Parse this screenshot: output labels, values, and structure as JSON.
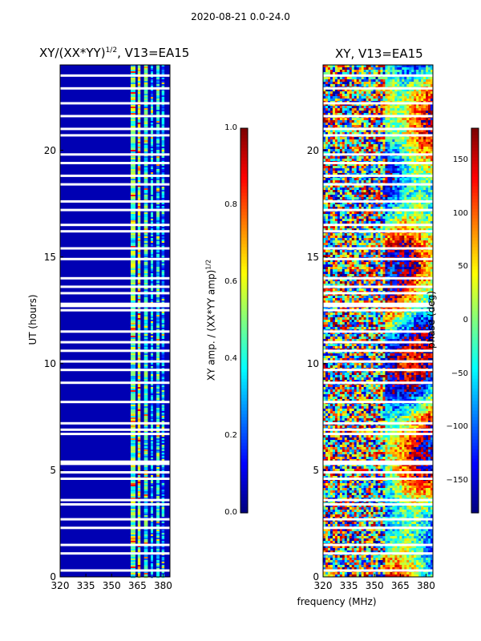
{
  "figure_title": "2020-08-21 0.0-24.0",
  "x_common_label": "frequency (MHz)",
  "chart_data": [
    {
      "type": "heatmap",
      "title": "XY/(XX*YY)",
      "title_exponent": "1/2",
      "title_suffix": ", V13=EA15",
      "xlabel": "frequency (MHz)",
      "ylabel": "UT (hours)",
      "xlim": [
        320,
        384
      ],
      "ylim": [
        0,
        24
      ],
      "xticks": [
        320,
        335,
        350,
        365,
        380
      ],
      "yticks": [
        0,
        5,
        10,
        15,
        20
      ],
      "colormap": "jet",
      "colorbar": {
        "label": "XY amp. / (XX*YY amp)",
        "label_exponent": "1/2",
        "range": [
          0.0,
          1.0
        ],
        "ticks": [
          "0.0",
          "0.2",
          "0.4",
          "0.6",
          "0.8",
          "1.0"
        ]
      },
      "signal_channels_mhz": [
        {
          "center": 362.5,
          "width": 2.8,
          "level": 0.45
        },
        {
          "center": 366.0,
          "width": 1.6,
          "level": 0.55
        },
        {
          "center": 370.0,
          "width": 2.2,
          "level": 0.4
        },
        {
          "center": 373.5,
          "width": 1.4,
          "level": 0.3
        },
        {
          "center": 377.0,
          "width": 1.8,
          "level": 0.35
        },
        {
          "center": 380.0,
          "width": 1.6,
          "level": 0.28
        }
      ],
      "background_level": 0.05
    },
    {
      "type": "heatmap",
      "title": "XY, V13=EA15",
      "xlabel": "frequency (MHz)",
      "ylabel": "",
      "xlim": [
        320,
        384
      ],
      "ylim": [
        0,
        24
      ],
      "xticks": [
        320,
        335,
        350,
        365,
        380
      ],
      "yticks": [
        0,
        5,
        10,
        15,
        20
      ],
      "colormap": "jet",
      "colorbar": {
        "label": "phase (deg)",
        "range": [
          -180,
          180
        ],
        "ticks": [
          "−150",
          "−100",
          "−50",
          "0",
          "50",
          "100",
          "150"
        ]
      }
    }
  ],
  "blank_hours": [
    0.3,
    1.1,
    1.5,
    2.3,
    2.7,
    3.4,
    3.6,
    4.6,
    4.9,
    5.3,
    5.4,
    6.7,
    6.9,
    7.2,
    8.2,
    9.1,
    9.7,
    10.1,
    10.6,
    11.0,
    11.5,
    12.5,
    12.7,
    12.8,
    13.3,
    13.6,
    14.0,
    14.9,
    15.4,
    16.2,
    16.5,
    17.2,
    17.6,
    18.4,
    18.8,
    19.4,
    19.8,
    20.7,
    21.0,
    21.6,
    22.2,
    22.9,
    23.5
  ]
}
